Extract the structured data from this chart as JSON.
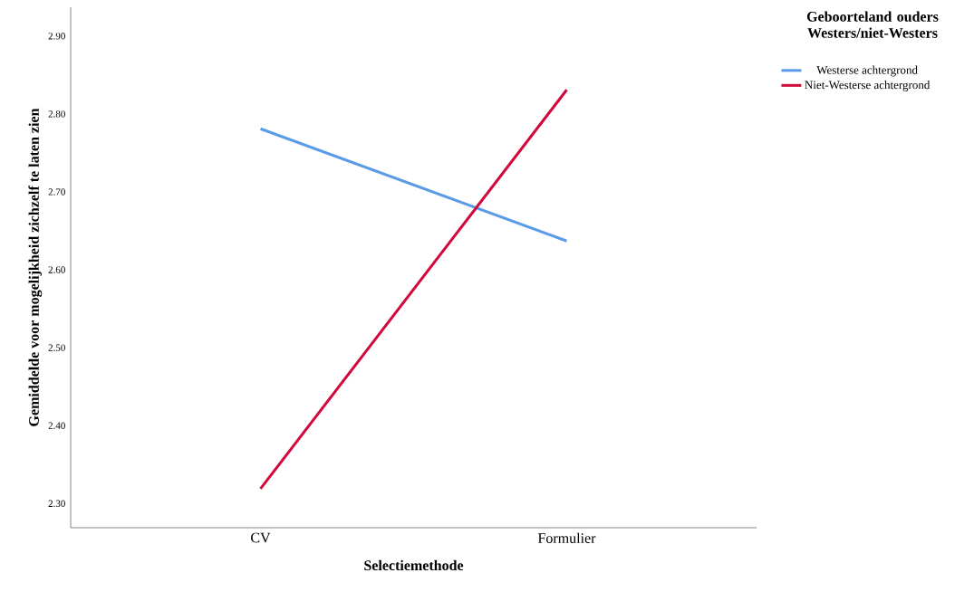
{
  "chart_data": {
    "type": "line",
    "xlabel": "Selectiemethode",
    "ylabel": "Gemiddelde voor mogelijkheid zichzelf te laten zien",
    "legend_title": "Geboorteland ouders Westers/niet-Westers",
    "legend": "top right",
    "categories": [
      "CV",
      "Formulier"
    ],
    "ylim": [
      2.269,
      2.937
    ],
    "yticks": [
      {
        "value": 2.3,
        "label": "2.30"
      },
      {
        "value": 2.4,
        "label": "2.40"
      },
      {
        "value": 2.5,
        "label": "2.50"
      },
      {
        "value": 2.6,
        "label": "2.60"
      },
      {
        "value": 2.7,
        "label": "2.70"
      },
      {
        "value": 2.8,
        "label": "2.80"
      },
      {
        "value": 2.9,
        "label": "2.90"
      }
    ],
    "series": [
      {
        "name": "Westerse achtergrond",
        "color": "#5a9be6",
        "values": [
          2.781,
          2.637
        ]
      },
      {
        "name": "Niet-Westerse achtergrond",
        "color": "#d2083a",
        "values": [
          2.319,
          2.831
        ]
      }
    ]
  }
}
